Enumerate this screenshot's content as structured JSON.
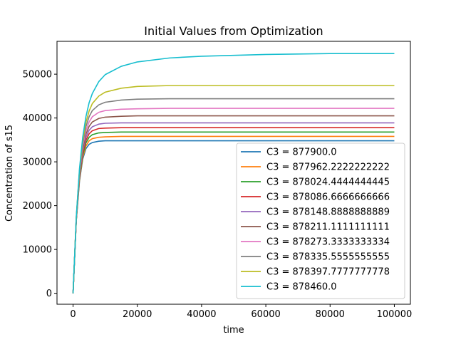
{
  "chart_data": {
    "type": "line",
    "title": "Initial Values from Optimization",
    "xlabel": "time",
    "ylabel": "Concentration of s15",
    "xlim": [
      -5000,
      105000
    ],
    "ylim": [
      -2500,
      57500
    ],
    "xticks": [
      0,
      20000,
      40000,
      60000,
      80000,
      100000
    ],
    "yticks": [
      0,
      10000,
      20000,
      30000,
      40000,
      50000
    ],
    "xtick_labels": [
      "0",
      "20000",
      "40000",
      "60000",
      "80000",
      "100000"
    ],
    "ytick_labels": [
      "0",
      "10000",
      "20000",
      "30000",
      "40000",
      "50000"
    ],
    "grid": false,
    "legend_position": "lower-right",
    "x": [
      0,
      1000,
      2000,
      3000,
      4000,
      5000,
      6000,
      8000,
      10000,
      15000,
      20000,
      30000,
      40000,
      50000,
      60000,
      70000,
      80000,
      90000,
      100000
    ],
    "series": [
      {
        "name": "C3 = 877900.0",
        "color": "#1f77b4",
        "values": [
          0,
          16500,
          25600,
          30600,
          33000,
          34000,
          34400,
          34700,
          34800,
          34800,
          34800,
          34800,
          34800,
          34800,
          34800,
          34800,
          34800,
          34800,
          34800
        ]
      },
      {
        "name": "C3 = 877962.2222222222",
        "color": "#ff7f0e",
        "values": [
          0,
          16600,
          25900,
          31000,
          33600,
          34800,
          35300,
          35600,
          35700,
          35800,
          35800,
          35800,
          35800,
          35800,
          35800,
          35800,
          35800,
          35800,
          35800
        ]
      },
      {
        "name": "C3 = 878024.4444444445",
        "color": "#2ca02c",
        "values": [
          0,
          16700,
          26200,
          31500,
          34300,
          35600,
          36200,
          36600,
          36700,
          36800,
          36800,
          36800,
          36800,
          36800,
          36800,
          36800,
          36800,
          36800,
          36800
        ]
      },
      {
        "name": "C3 = 878086.6666666666",
        "color": "#d62728",
        "values": [
          0,
          16800,
          26500,
          32000,
          34900,
          36400,
          37100,
          37600,
          37700,
          37800,
          37800,
          37800,
          37800,
          37800,
          37800,
          37800,
          37800,
          37800,
          37800
        ]
      },
      {
        "name": "C3 = 878148.8888888889",
        "color": "#9467bd",
        "values": [
          0,
          16900,
          26800,
          32500,
          35600,
          37200,
          38000,
          38600,
          38800,
          38900,
          38900,
          38900,
          38900,
          38900,
          38900,
          38900,
          38900,
          38900,
          38900
        ]
      },
      {
        "name": "C3 = 878211.1111111111",
        "color": "#8c564b",
        "values": [
          0,
          17000,
          27100,
          33000,
          36300,
          38100,
          39100,
          39900,
          40200,
          40400,
          40500,
          40500,
          40500,
          40500,
          40500,
          40500,
          40500,
          40500,
          40500
        ]
      },
      {
        "name": "C3 = 878273.3333333334",
        "color": "#e377c2",
        "values": [
          0,
          17100,
          27400,
          33600,
          37100,
          39100,
          40300,
          41300,
          41700,
          42000,
          42100,
          42200,
          42200,
          42200,
          42200,
          42200,
          42200,
          42200,
          42200
        ]
      },
      {
        "name": "C3 = 878335.5555555555",
        "color": "#7f7f7f",
        "values": [
          0,
          17200,
          27700,
          34200,
          38000,
          40300,
          41700,
          43000,
          43600,
          44100,
          44300,
          44400,
          44400,
          44400,
          44400,
          44400,
          44400,
          44400,
          44400
        ]
      },
      {
        "name": "C3 = 878397.7777777778",
        "color": "#bcbd22",
        "values": [
          0,
          17300,
          28000,
          34800,
          39000,
          41600,
          43300,
          45000,
          45900,
          46800,
          47200,
          47400,
          47400,
          47400,
          47400,
          47400,
          47400,
          47400,
          47400
        ]
      },
      {
        "name": "C3 = 878460.0",
        "color": "#17becf",
        "values": [
          0,
          17400,
          28400,
          35600,
          40300,
          43500,
          45600,
          48300,
          49900,
          51800,
          52800,
          53700,
          54100,
          54300,
          54500,
          54600,
          54700,
          54700,
          54700
        ]
      }
    ]
  }
}
